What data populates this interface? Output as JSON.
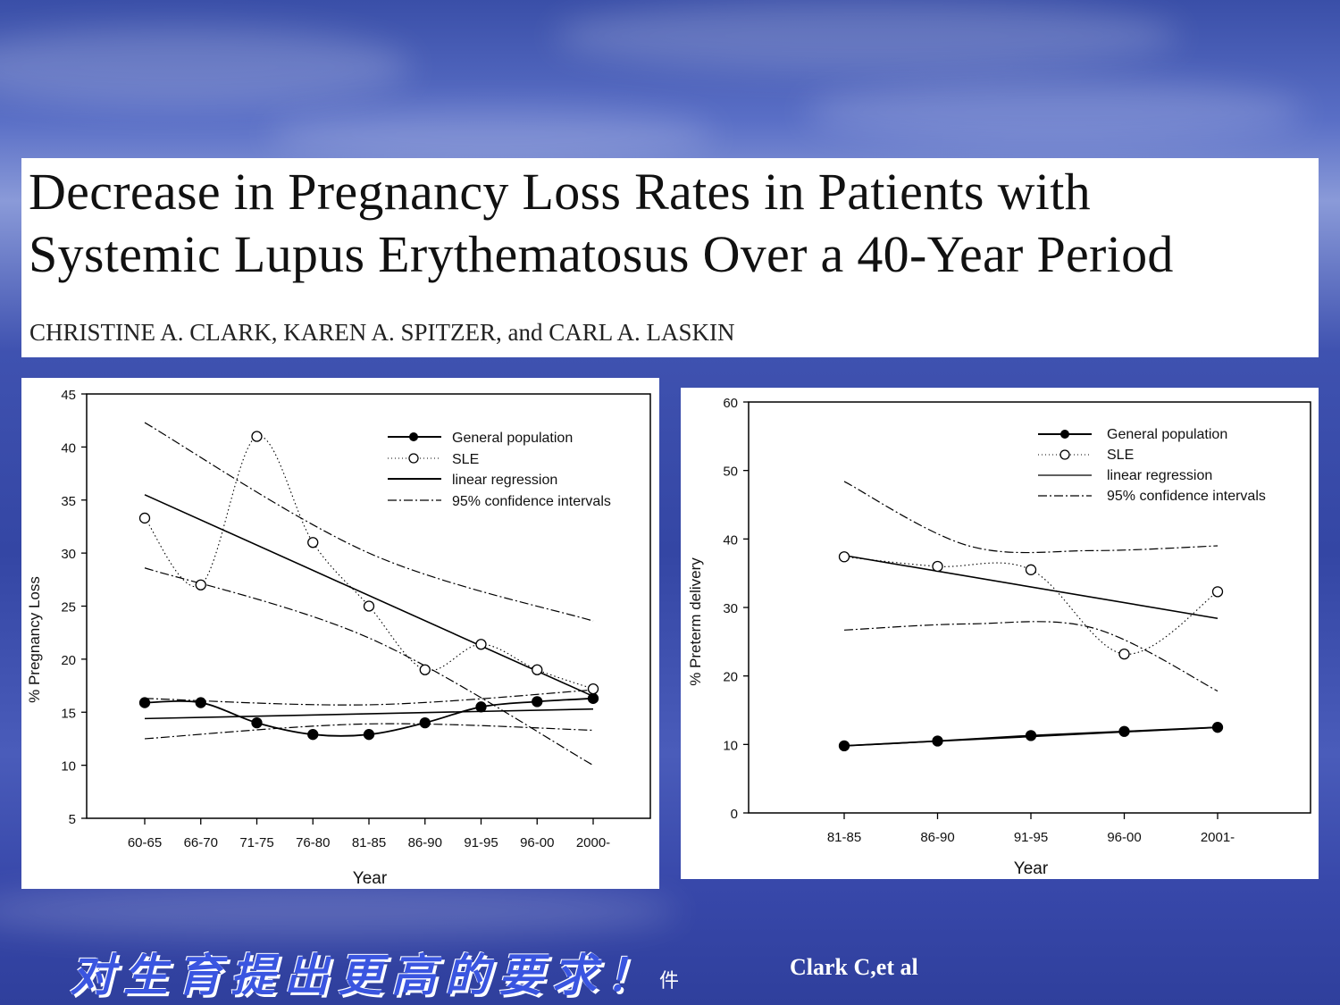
{
  "slide": {
    "title_line1": "Decrease in Pregnancy Loss Rates in Patients with",
    "title_line2": "Systemic Lupus Erythematosus Over a 40-Year Period",
    "authors": "CHRISTINE A. CLARK, KAREN A. SPITZER, and CARL A. LASKIN",
    "footer_chinese": "对生育提出更高的要求！",
    "footer_mid": "件",
    "footer_citation": "Clark C,et al"
  },
  "chart_data": [
    {
      "type": "line",
      "xlabel": "Year",
      "ylabel": "% Pregnancy Loss",
      "categories": [
        "60-65",
        "66-70",
        "71-75",
        "76-80",
        "81-85",
        "86-90",
        "91-95",
        "96-00",
        "2000-"
      ],
      "ylim": [
        5,
        45
      ],
      "yticks": [
        5,
        10,
        15,
        20,
        25,
        30,
        35,
        40,
        45
      ],
      "legend_position": "top-right",
      "legend": [
        "General population",
        "SLE",
        "linear regression",
        "95% confidence intervals"
      ],
      "series": [
        {
          "name": "General population",
          "marker": "filled-circle",
          "values": [
            15.9,
            15.9,
            14.0,
            12.9,
            12.9,
            14.0,
            15.5,
            16.0,
            16.3
          ]
        },
        {
          "name": "SLE",
          "marker": "open-circle",
          "values": [
            33.3,
            27.0,
            41.0,
            31.0,
            25.0,
            19.0,
            21.4,
            19.0,
            17.2
          ]
        }
      ],
      "regression": {
        "general": {
          "start": 14.4,
          "end": 15.3,
          "ci_upper": [
            16.3,
            15.7,
            17.1
          ],
          "ci_lower": [
            12.5,
            13.9,
            13.3
          ]
        },
        "sle": {
          "start": 35.5,
          "end": 16.5,
          "ci_upper": [
            42.3,
            30.0,
            23.6
          ],
          "ci_lower": [
            28.6,
            22.0,
            10.0
          ]
        }
      }
    },
    {
      "type": "line",
      "xlabel": "Year",
      "ylabel": "% Preterm delivery",
      "categories": [
        "81-85",
        "86-90",
        "91-95",
        "96-00",
        "2001-"
      ],
      "ylim": [
        0,
        60
      ],
      "yticks": [
        0,
        10,
        20,
        30,
        40,
        50,
        60
      ],
      "legend_position": "top-right",
      "legend": [
        "General population",
        "SLE",
        "linear regression",
        "95% confidence intervals"
      ],
      "series": [
        {
          "name": "General population",
          "marker": "filled-circle",
          "values": [
            9.8,
            10.5,
            11.3,
            11.9,
            12.5
          ]
        },
        {
          "name": "SLE",
          "marker": "open-circle",
          "values": [
            37.4,
            36.0,
            35.5,
            23.2,
            32.3
          ]
        }
      ],
      "regression": {
        "general": {
          "start": 9.8,
          "end": 12.5
        },
        "sle": {
          "start": 37.6,
          "end": 28.4,
          "ci_upper": [
            48.4,
            39.0,
            38.3,
            39.0
          ],
          "ci_lower": [
            26.7,
            27.6,
            27.0,
            17.8
          ]
        }
      }
    }
  ]
}
